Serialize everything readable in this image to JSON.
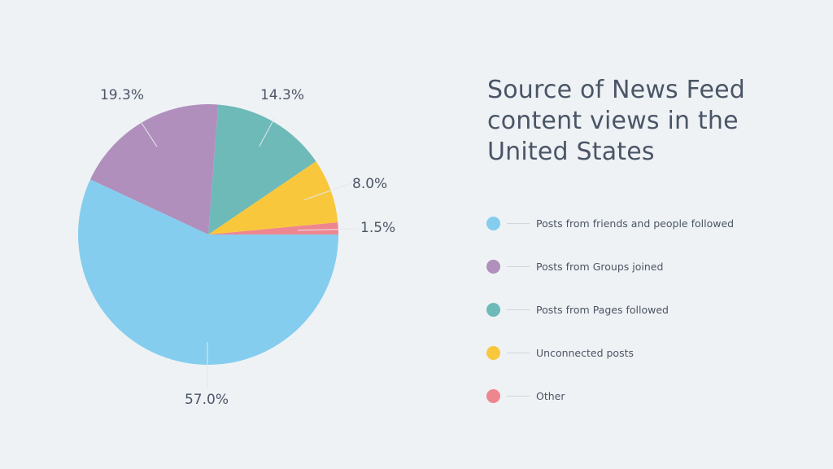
{
  "chart_data": {
    "type": "pie",
    "title": "Source of News Feed content views in the United States",
    "categories": [
      "Posts from friends and people followed",
      "Posts from Groups joined",
      "Posts from Pages followed",
      "Unconnected posts",
      "Other"
    ],
    "values": [
      57.0,
      19.3,
      14.3,
      8.0,
      1.5
    ],
    "labels": [
      "57.0%",
      "19.3%",
      "14.3%",
      "8.0%",
      "1.5%"
    ],
    "colors": [
      "#84cdee",
      "#b08fbd",
      "#6dbab9",
      "#f8c73c",
      "#ee8690"
    ],
    "legend_position": "right"
  }
}
